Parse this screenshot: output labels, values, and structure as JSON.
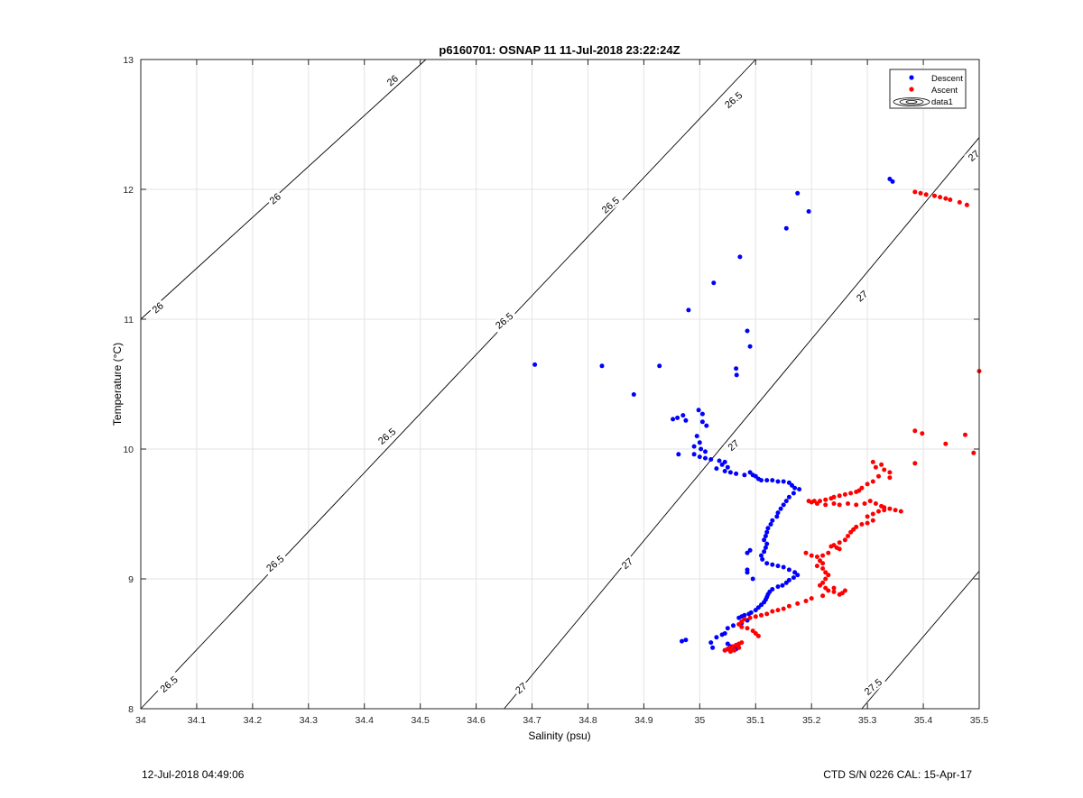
{
  "chart_data": {
    "type": "scatter",
    "title": "p6160701: OSNAP 11 11-Jul-2018 23:22:24Z",
    "xlabel": "Salinity (psu)",
    "ylabel": "Temperature (°C)",
    "xlim": [
      34,
      35.5
    ],
    "ylim": [
      8,
      13
    ],
    "xticks": [
      "34",
      "34.1",
      "34.2",
      "34.3",
      "34.4",
      "34.5",
      "34.6",
      "34.7",
      "34.8",
      "34.9",
      "35",
      "35.1",
      "35.2",
      "35.3",
      "35.4",
      "35.5"
    ],
    "yticks": [
      "8",
      "9",
      "10",
      "11",
      "12",
      "13"
    ],
    "grid": true,
    "legend_position": "top-right",
    "legend": [
      "Descent",
      "Ascent",
      "data1"
    ],
    "contours": [
      {
        "label": "26",
        "points": [
          [
            34.0,
            11.0
          ],
          [
            34.51,
            13.0
          ]
        ]
      },
      {
        "label": "26.5",
        "points": [
          [
            34.0,
            8.0
          ],
          [
            35.1,
            13.0
          ]
        ]
      },
      {
        "label": "27",
        "points": [
          [
            34.65,
            8.0
          ],
          [
            35.5,
            12.4
          ]
        ]
      },
      {
        "label": "27.5",
        "points": [
          [
            35.29,
            8.0
          ],
          [
            35.5,
            9.06
          ]
        ]
      }
    ],
    "contour_labels": [
      {
        "text": "26",
        "x": 34.45,
        "y": 12.84,
        "angle": -40
      },
      {
        "text": "26",
        "x": 34.24,
        "y": 11.93,
        "angle": -40
      },
      {
        "text": "26",
        "x": 34.03,
        "y": 11.09,
        "angle": -40
      },
      {
        "text": "26.5",
        "x": 35.06,
        "y": 12.69,
        "angle": -40
      },
      {
        "text": "26.5",
        "x": 34.84,
        "y": 11.88,
        "angle": -40
      },
      {
        "text": "26.5",
        "x": 34.65,
        "y": 10.99,
        "angle": -40
      },
      {
        "text": "26.5",
        "x": 34.44,
        "y": 10.1,
        "angle": -40
      },
      {
        "text": "26.5",
        "x": 34.24,
        "y": 9.12,
        "angle": -40
      },
      {
        "text": "26.5",
        "x": 34.05,
        "y": 8.19,
        "angle": -40
      },
      {
        "text": "27",
        "x": 35.49,
        "y": 12.26,
        "angle": -40
      },
      {
        "text": "27",
        "x": 35.29,
        "y": 11.18,
        "angle": -40
      },
      {
        "text": "27",
        "x": 35.06,
        "y": 10.03,
        "angle": -40
      },
      {
        "text": "27",
        "x": 34.87,
        "y": 9.12,
        "angle": -40
      },
      {
        "text": "27",
        "x": 34.68,
        "y": 8.16,
        "angle": -40
      },
      {
        "text": "27.5",
        "x": 35.31,
        "y": 8.17,
        "angle": -40
      }
    ],
    "series": [
      {
        "name": "Descent",
        "color": "#0000ff",
        "points": [
          [
            35.34,
            12.08
          ],
          [
            35.345,
            12.06
          ],
          [
            35.175,
            11.97
          ],
          [
            35.195,
            11.83
          ],
          [
            35.155,
            11.7
          ],
          [
            35.072,
            11.48
          ],
          [
            35.025,
            11.28
          ],
          [
            34.98,
            11.07
          ],
          [
            35.085,
            10.91
          ],
          [
            35.09,
            10.79
          ],
          [
            34.705,
            10.65
          ],
          [
            34.825,
            10.64
          ],
          [
            34.928,
            10.64
          ],
          [
            35.065,
            10.62
          ],
          [
            35.066,
            10.57
          ],
          [
            34.882,
            10.42
          ],
          [
            34.998,
            10.3
          ],
          [
            35.005,
            10.27
          ],
          [
            34.97,
            10.26
          ],
          [
            34.96,
            10.24
          ],
          [
            34.952,
            10.23
          ],
          [
            34.975,
            10.22
          ],
          [
            35.005,
            10.21
          ],
          [
            35.012,
            10.18
          ],
          [
            34.995,
            10.1
          ],
          [
            35.0,
            10.05
          ],
          [
            34.99,
            10.02
          ],
          [
            35.002,
            10.0
          ],
          [
            35.01,
            9.98
          ],
          [
            34.962,
            9.96
          ],
          [
            34.99,
            9.96
          ],
          [
            35.0,
            9.94
          ],
          [
            35.01,
            9.93
          ],
          [
            35.02,
            9.92
          ],
          [
            35.035,
            9.91
          ],
          [
            35.045,
            9.9
          ],
          [
            35.04,
            9.88
          ],
          [
            35.05,
            9.86
          ],
          [
            35.03,
            9.85
          ],
          [
            35.045,
            9.83
          ],
          [
            35.055,
            9.82
          ],
          [
            35.065,
            9.81
          ],
          [
            35.08,
            9.8
          ],
          [
            35.09,
            9.82
          ],
          [
            35.095,
            9.8
          ],
          [
            35.1,
            9.79
          ],
          [
            35.105,
            9.77
          ],
          [
            35.11,
            9.76
          ],
          [
            35.12,
            9.76
          ],
          [
            35.13,
            9.76
          ],
          [
            35.14,
            9.75
          ],
          [
            35.15,
            9.75
          ],
          [
            35.16,
            9.74
          ],
          [
            35.165,
            9.72
          ],
          [
            35.17,
            9.7
          ],
          [
            35.178,
            9.69
          ],
          [
            35.168,
            9.66
          ],
          [
            35.16,
            9.63
          ],
          [
            35.155,
            9.6
          ],
          [
            35.15,
            9.57
          ],
          [
            35.145,
            9.54
          ],
          [
            35.14,
            9.51
          ],
          [
            35.138,
            9.48
          ],
          [
            35.13,
            9.45
          ],
          [
            35.127,
            9.42
          ],
          [
            35.122,
            9.39
          ],
          [
            35.12,
            9.36
          ],
          [
            35.118,
            9.33
          ],
          [
            35.115,
            9.3
          ],
          [
            35.12,
            9.27
          ],
          [
            35.118,
            9.24
          ],
          [
            35.115,
            9.21
          ],
          [
            35.11,
            9.18
          ],
          [
            35.112,
            9.15
          ],
          [
            35.12,
            9.12
          ],
          [
            35.13,
            9.11
          ],
          [
            35.14,
            9.1
          ],
          [
            35.15,
            9.09
          ],
          [
            35.16,
            9.07
          ],
          [
            35.17,
            9.05
          ],
          [
            35.175,
            9.03
          ],
          [
            35.168,
            9.01
          ],
          [
            35.16,
            8.99
          ],
          [
            35.155,
            8.97
          ],
          [
            35.148,
            8.95
          ],
          [
            35.14,
            8.94
          ],
          [
            35.13,
            8.92
          ],
          [
            35.125,
            8.9
          ],
          [
            35.122,
            8.88
          ],
          [
            35.12,
            8.86
          ],
          [
            35.118,
            8.84
          ],
          [
            35.115,
            8.82
          ],
          [
            35.11,
            8.8
          ],
          [
            35.105,
            8.78
          ],
          [
            35.1,
            8.76
          ],
          [
            35.092,
            8.74
          ],
          [
            35.088,
            8.73
          ],
          [
            35.08,
            8.72
          ],
          [
            35.075,
            8.71
          ],
          [
            35.07,
            8.7
          ],
          [
            35.085,
            8.68
          ],
          [
            35.075,
            8.66
          ],
          [
            35.06,
            8.64
          ],
          [
            35.05,
            8.62
          ],
          [
            35.045,
            8.58
          ],
          [
            35.04,
            8.57
          ],
          [
            35.03,
            8.55
          ],
          [
            34.975,
            8.53
          ],
          [
            34.968,
            8.52
          ],
          [
            35.02,
            8.51
          ],
          [
            35.05,
            8.5
          ],
          [
            35.055,
            8.48
          ],
          [
            35.06,
            8.47
          ],
          [
            35.05,
            8.46
          ],
          [
            35.023,
            8.47
          ],
          [
            35.045,
            8.45
          ],
          [
            35.065,
            8.46
          ],
          [
            35.09,
            9.22
          ],
          [
            35.085,
            9.2
          ],
          [
            35.085,
            9.07
          ],
          [
            35.085,
            9.05
          ],
          [
            35.095,
            9.0
          ]
        ]
      },
      {
        "name": "Ascent",
        "color": "#ff0000",
        "points": [
          [
            35.385,
            11.98
          ],
          [
            35.395,
            11.97
          ],
          [
            35.405,
            11.96
          ],
          [
            35.42,
            11.95
          ],
          [
            35.43,
            11.94
          ],
          [
            35.44,
            11.93
          ],
          [
            35.448,
            11.92
          ],
          [
            35.465,
            11.9
          ],
          [
            35.478,
            11.88
          ],
          [
            35.5,
            10.6
          ],
          [
            35.385,
            10.14
          ],
          [
            35.398,
            10.12
          ],
          [
            35.475,
            10.11
          ],
          [
            35.44,
            10.04
          ],
          [
            35.49,
            9.97
          ],
          [
            35.31,
            9.9
          ],
          [
            35.325,
            9.88
          ],
          [
            35.385,
            9.89
          ],
          [
            35.315,
            9.86
          ],
          [
            35.33,
            9.84
          ],
          [
            35.34,
            9.82
          ],
          [
            35.32,
            9.79
          ],
          [
            35.34,
            9.78
          ],
          [
            35.31,
            9.75
          ],
          [
            35.3,
            9.73
          ],
          [
            35.29,
            9.7
          ],
          [
            35.285,
            9.68
          ],
          [
            35.28,
            9.67
          ],
          [
            35.27,
            9.66
          ],
          [
            35.26,
            9.65
          ],
          [
            35.25,
            9.64
          ],
          [
            35.24,
            9.63
          ],
          [
            35.235,
            9.62
          ],
          [
            35.225,
            9.61
          ],
          [
            35.215,
            9.6
          ],
          [
            35.205,
            9.6
          ],
          [
            35.195,
            9.6
          ],
          [
            35.2,
            9.59
          ],
          [
            35.21,
            9.58
          ],
          [
            35.225,
            9.57
          ],
          [
            35.24,
            9.58
          ],
          [
            35.25,
            9.57
          ],
          [
            35.265,
            9.58
          ],
          [
            35.28,
            9.57
          ],
          [
            35.295,
            9.58
          ],
          [
            35.305,
            9.6
          ],
          [
            35.315,
            9.58
          ],
          [
            35.325,
            9.56
          ],
          [
            35.33,
            9.55
          ],
          [
            35.34,
            9.54
          ],
          [
            35.35,
            9.53
          ],
          [
            35.36,
            9.52
          ],
          [
            35.33,
            9.53
          ],
          [
            35.32,
            9.52
          ],
          [
            35.31,
            9.5
          ],
          [
            35.3,
            9.48
          ],
          [
            35.31,
            9.45
          ],
          [
            35.3,
            9.43
          ],
          [
            35.29,
            9.42
          ],
          [
            35.28,
            9.4
          ],
          [
            35.275,
            9.38
          ],
          [
            35.27,
            9.36
          ],
          [
            35.265,
            9.33
          ],
          [
            35.26,
            9.3
          ],
          [
            35.25,
            9.28
          ],
          [
            35.24,
            9.26
          ],
          [
            35.235,
            9.25
          ],
          [
            35.245,
            9.24
          ],
          [
            35.25,
            9.23
          ],
          [
            35.23,
            9.2
          ],
          [
            35.22,
            9.18
          ],
          [
            35.21,
            9.17
          ],
          [
            35.2,
            9.18
          ],
          [
            35.19,
            9.2
          ],
          [
            35.215,
            9.14
          ],
          [
            35.22,
            9.12
          ],
          [
            35.21,
            9.1
          ],
          [
            35.22,
            9.08
          ],
          [
            35.225,
            9.05
          ],
          [
            35.23,
            9.03
          ],
          [
            35.225,
            9.0
          ],
          [
            35.22,
            8.97
          ],
          [
            35.215,
            8.95
          ],
          [
            35.225,
            8.93
          ],
          [
            35.23,
            8.91
          ],
          [
            35.24,
            8.9
          ],
          [
            35.25,
            8.88
          ],
          [
            35.22,
            8.87
          ],
          [
            35.2,
            8.85
          ],
          [
            35.19,
            8.83
          ],
          [
            35.175,
            8.81
          ],
          [
            35.16,
            8.79
          ],
          [
            35.15,
            8.77
          ],
          [
            35.14,
            8.76
          ],
          [
            35.13,
            8.75
          ],
          [
            35.12,
            8.73
          ],
          [
            35.11,
            8.72
          ],
          [
            35.1,
            8.71
          ],
          [
            35.09,
            8.7
          ],
          [
            35.08,
            8.69
          ],
          [
            35.075,
            8.67
          ],
          [
            35.07,
            8.65
          ],
          [
            35.075,
            8.63
          ],
          [
            35.085,
            8.62
          ],
          [
            35.095,
            8.6
          ],
          [
            35.1,
            8.58
          ],
          [
            35.105,
            8.56
          ],
          [
            35.075,
            8.51
          ],
          [
            35.07,
            8.5
          ],
          [
            35.065,
            8.49
          ],
          [
            35.06,
            8.48
          ],
          [
            35.055,
            8.47
          ],
          [
            35.05,
            8.46
          ],
          [
            35.045,
            8.45
          ],
          [
            35.055,
            8.44
          ],
          [
            35.062,
            8.45
          ],
          [
            35.07,
            8.47
          ],
          [
            35.24,
            8.93
          ],
          [
            35.26,
            8.91
          ],
          [
            35.255,
            8.89
          ]
        ]
      }
    ]
  },
  "footer": {
    "left": "12-Jul-2018 04:49:06",
    "right": "CTD S/N 0226  CAL: 15-Apr-17"
  }
}
